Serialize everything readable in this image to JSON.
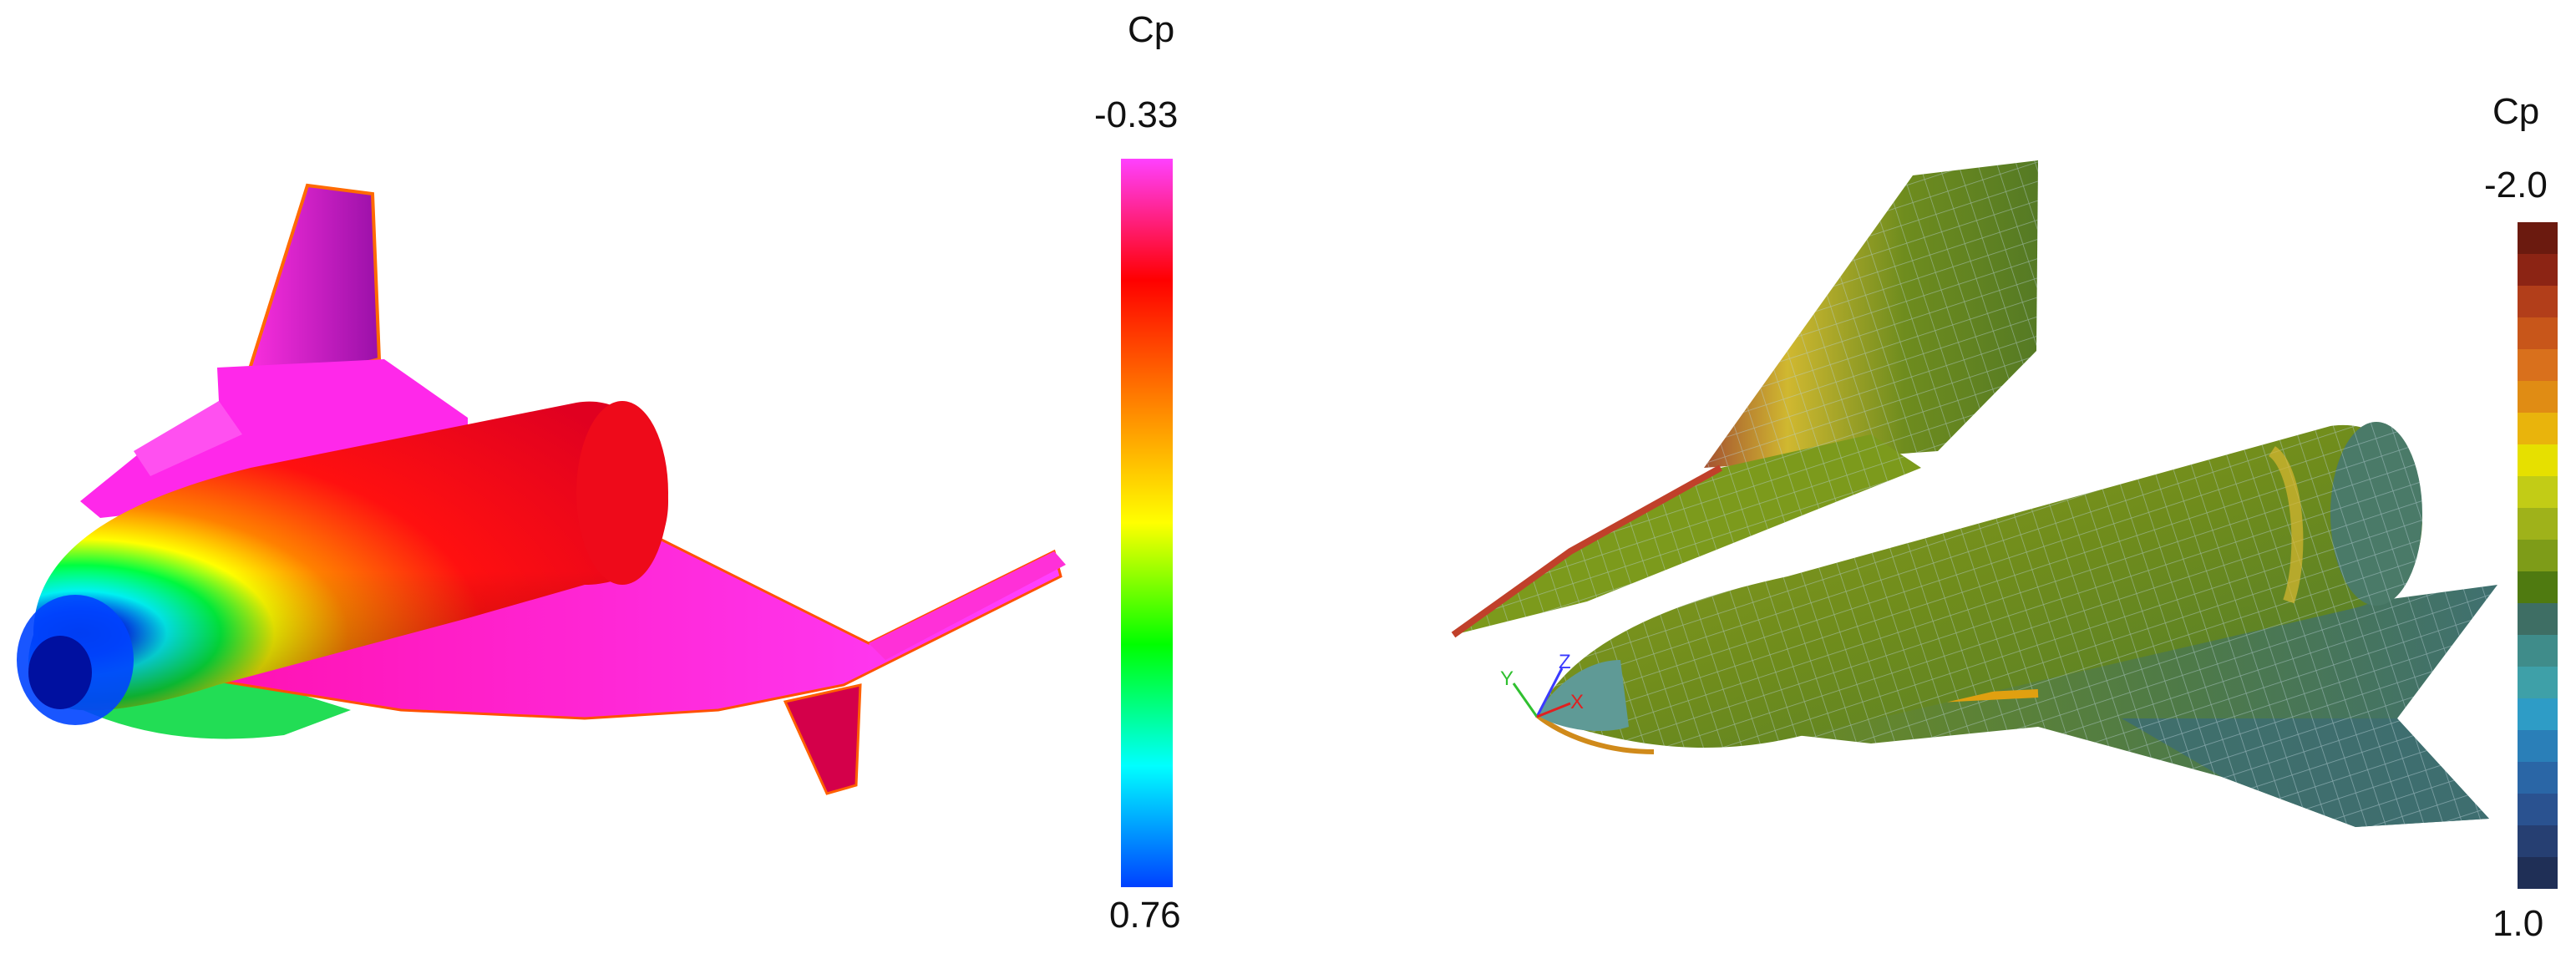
{
  "left": {
    "colorbar_title": "Cp",
    "colorbar_max_label": "-0.33",
    "colorbar_min_label": "0.76",
    "colorbar_colors": [
      "#ff40ff",
      "#ff0000",
      "#ff8000",
      "#ffff00",
      "#00ff00",
      "#00ffff",
      "#0040ff"
    ]
  },
  "right": {
    "colorbar_title": "Cp",
    "colorbar_max_label": "-2.0",
    "colorbar_min_label": "1.0",
    "colorbar_colors": [
      "#6b1a0f",
      "#8c2414",
      "#b23e1a",
      "#c8561a",
      "#d9701c",
      "#e08c14",
      "#e9b40c",
      "#e6e000",
      "#c2cc16",
      "#9fb21a",
      "#7e9c18",
      "#4f7a10",
      "#3e6e64",
      "#3f8c8a",
      "#3ea0a8",
      "#2e9cc6",
      "#2a7fb8",
      "#2a66a6",
      "#2a5290",
      "#263f72",
      "#1f2f56"
    ],
    "axis_triad": {
      "x": "X",
      "y": "Y",
      "z": "Z"
    }
  }
}
